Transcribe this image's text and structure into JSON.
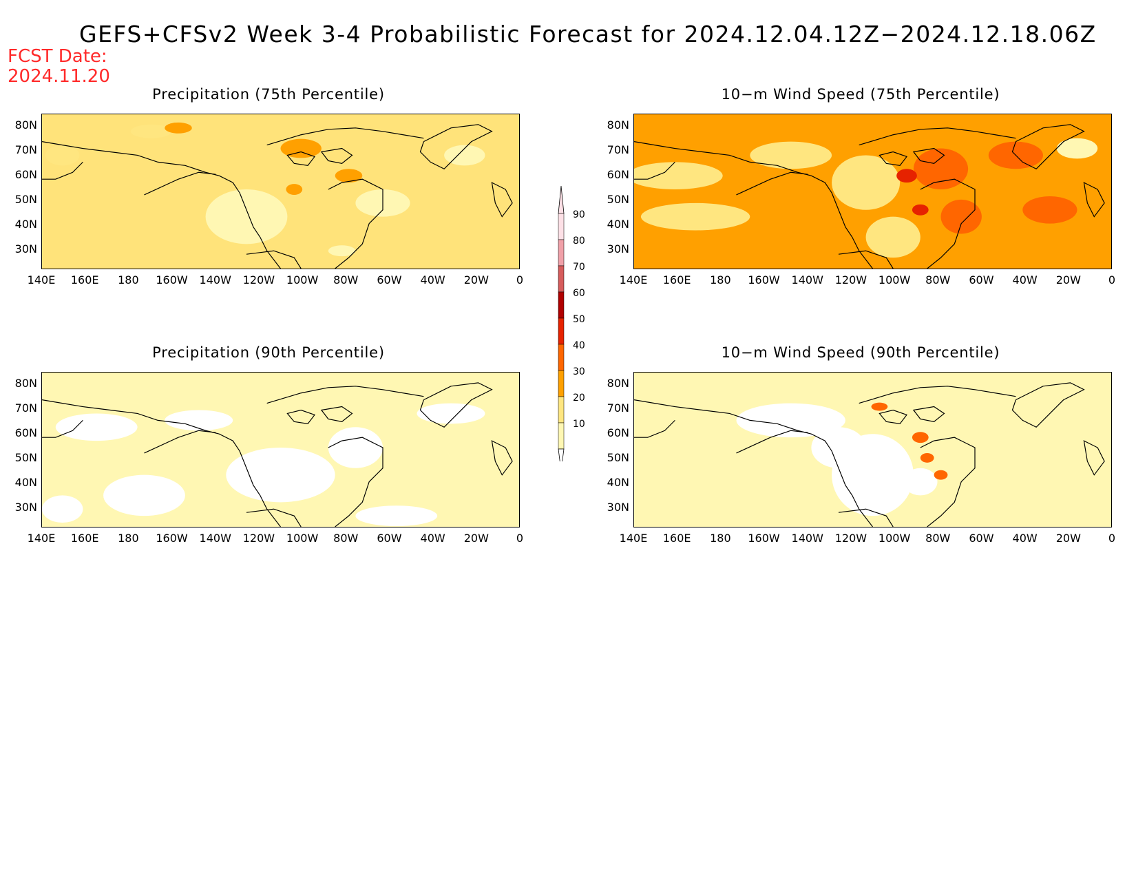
{
  "title": "GEFS+CFSv2 Week 3-4 Probabilistic Forecast for 2024.12.04.12Z−2024.12.18.06Z",
  "fcst_date_label": "FCST Date:",
  "fcst_date_value": "2024.11.20",
  "lat_labels": [
    "80N",
    "70N",
    "60N",
    "50N",
    "40N",
    "30N"
  ],
  "lon_labels": [
    "140E",
    "160E",
    "180",
    "160W",
    "140W",
    "120W",
    "100W",
    "80W",
    "60W",
    "40W",
    "20W",
    "0"
  ],
  "colorbar": {
    "levels": [
      "10",
      "20",
      "30",
      "40",
      "50",
      "60",
      "70",
      "80",
      "90"
    ],
    "colors": [
      "#fff7b3",
      "#ffe680",
      "#ffa000",
      "#ff6600",
      "#e62200",
      "#b00000",
      "#d65c5c",
      "#f0a0a8",
      "#fde0e6"
    ]
  },
  "panels": [
    {
      "title": "Precipitation (75th Percentile)",
      "base_color": "#ffe37a"
    },
    {
      "title": "10−m Wind Speed (75th Percentile)",
      "base_color": "#ffa000"
    },
    {
      "title": "Precipitation (90th Percentile)",
      "base_color": "#fff7b3"
    },
    {
      "title": "10−m Wind Speed (90th Percentile)",
      "base_color": "#fff7b3"
    }
  ]
}
